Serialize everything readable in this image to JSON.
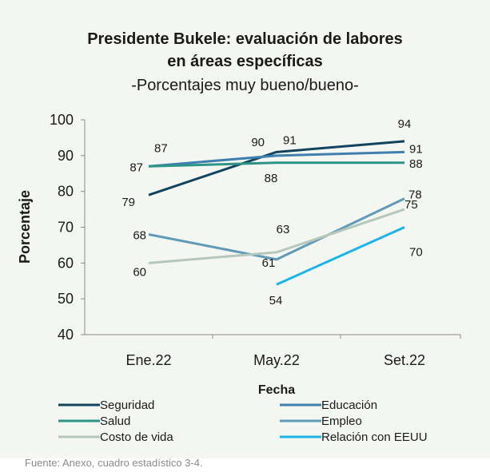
{
  "chart_data": {
    "type": "line",
    "title_line1": "Presidente Bukele:  evaluación de labores",
    "title_line2": "en áreas específicas",
    "subtitle": "-Porcentajes muy bueno/bueno-",
    "xlabel": "Fecha",
    "ylabel": "Porcentaje",
    "categories": [
      "Ene.22",
      "May.22",
      "Set.22"
    ],
    "ylim": [
      40,
      100
    ],
    "yticks": [
      40,
      50,
      60,
      70,
      80,
      90,
      100
    ],
    "grid": false,
    "legend_position": "bottom",
    "series": [
      {
        "name": "Seguridad",
        "color": "#12435e",
        "values": [
          79,
          91,
          94
        ]
      },
      {
        "name": "Educación",
        "color": "#3f7fb0",
        "values": [
          87,
          90,
          91
        ]
      },
      {
        "name": "Salud",
        "color": "#2e9488",
        "values": [
          87,
          88,
          88
        ]
      },
      {
        "name": "Empleo",
        "color": "#5f9bb8",
        "values": [
          68,
          61,
          78
        ]
      },
      {
        "name": "Costo de vida",
        "color": "#b5c7bb",
        "values": [
          60,
          63,
          75
        ]
      },
      {
        "name": "Relación con EEUU",
        "color": "#1cb3e8",
        "values": [
          null,
          54,
          70
        ]
      }
    ]
  },
  "source": "Fuente: Anexo, cuadro estadístico 3-4."
}
